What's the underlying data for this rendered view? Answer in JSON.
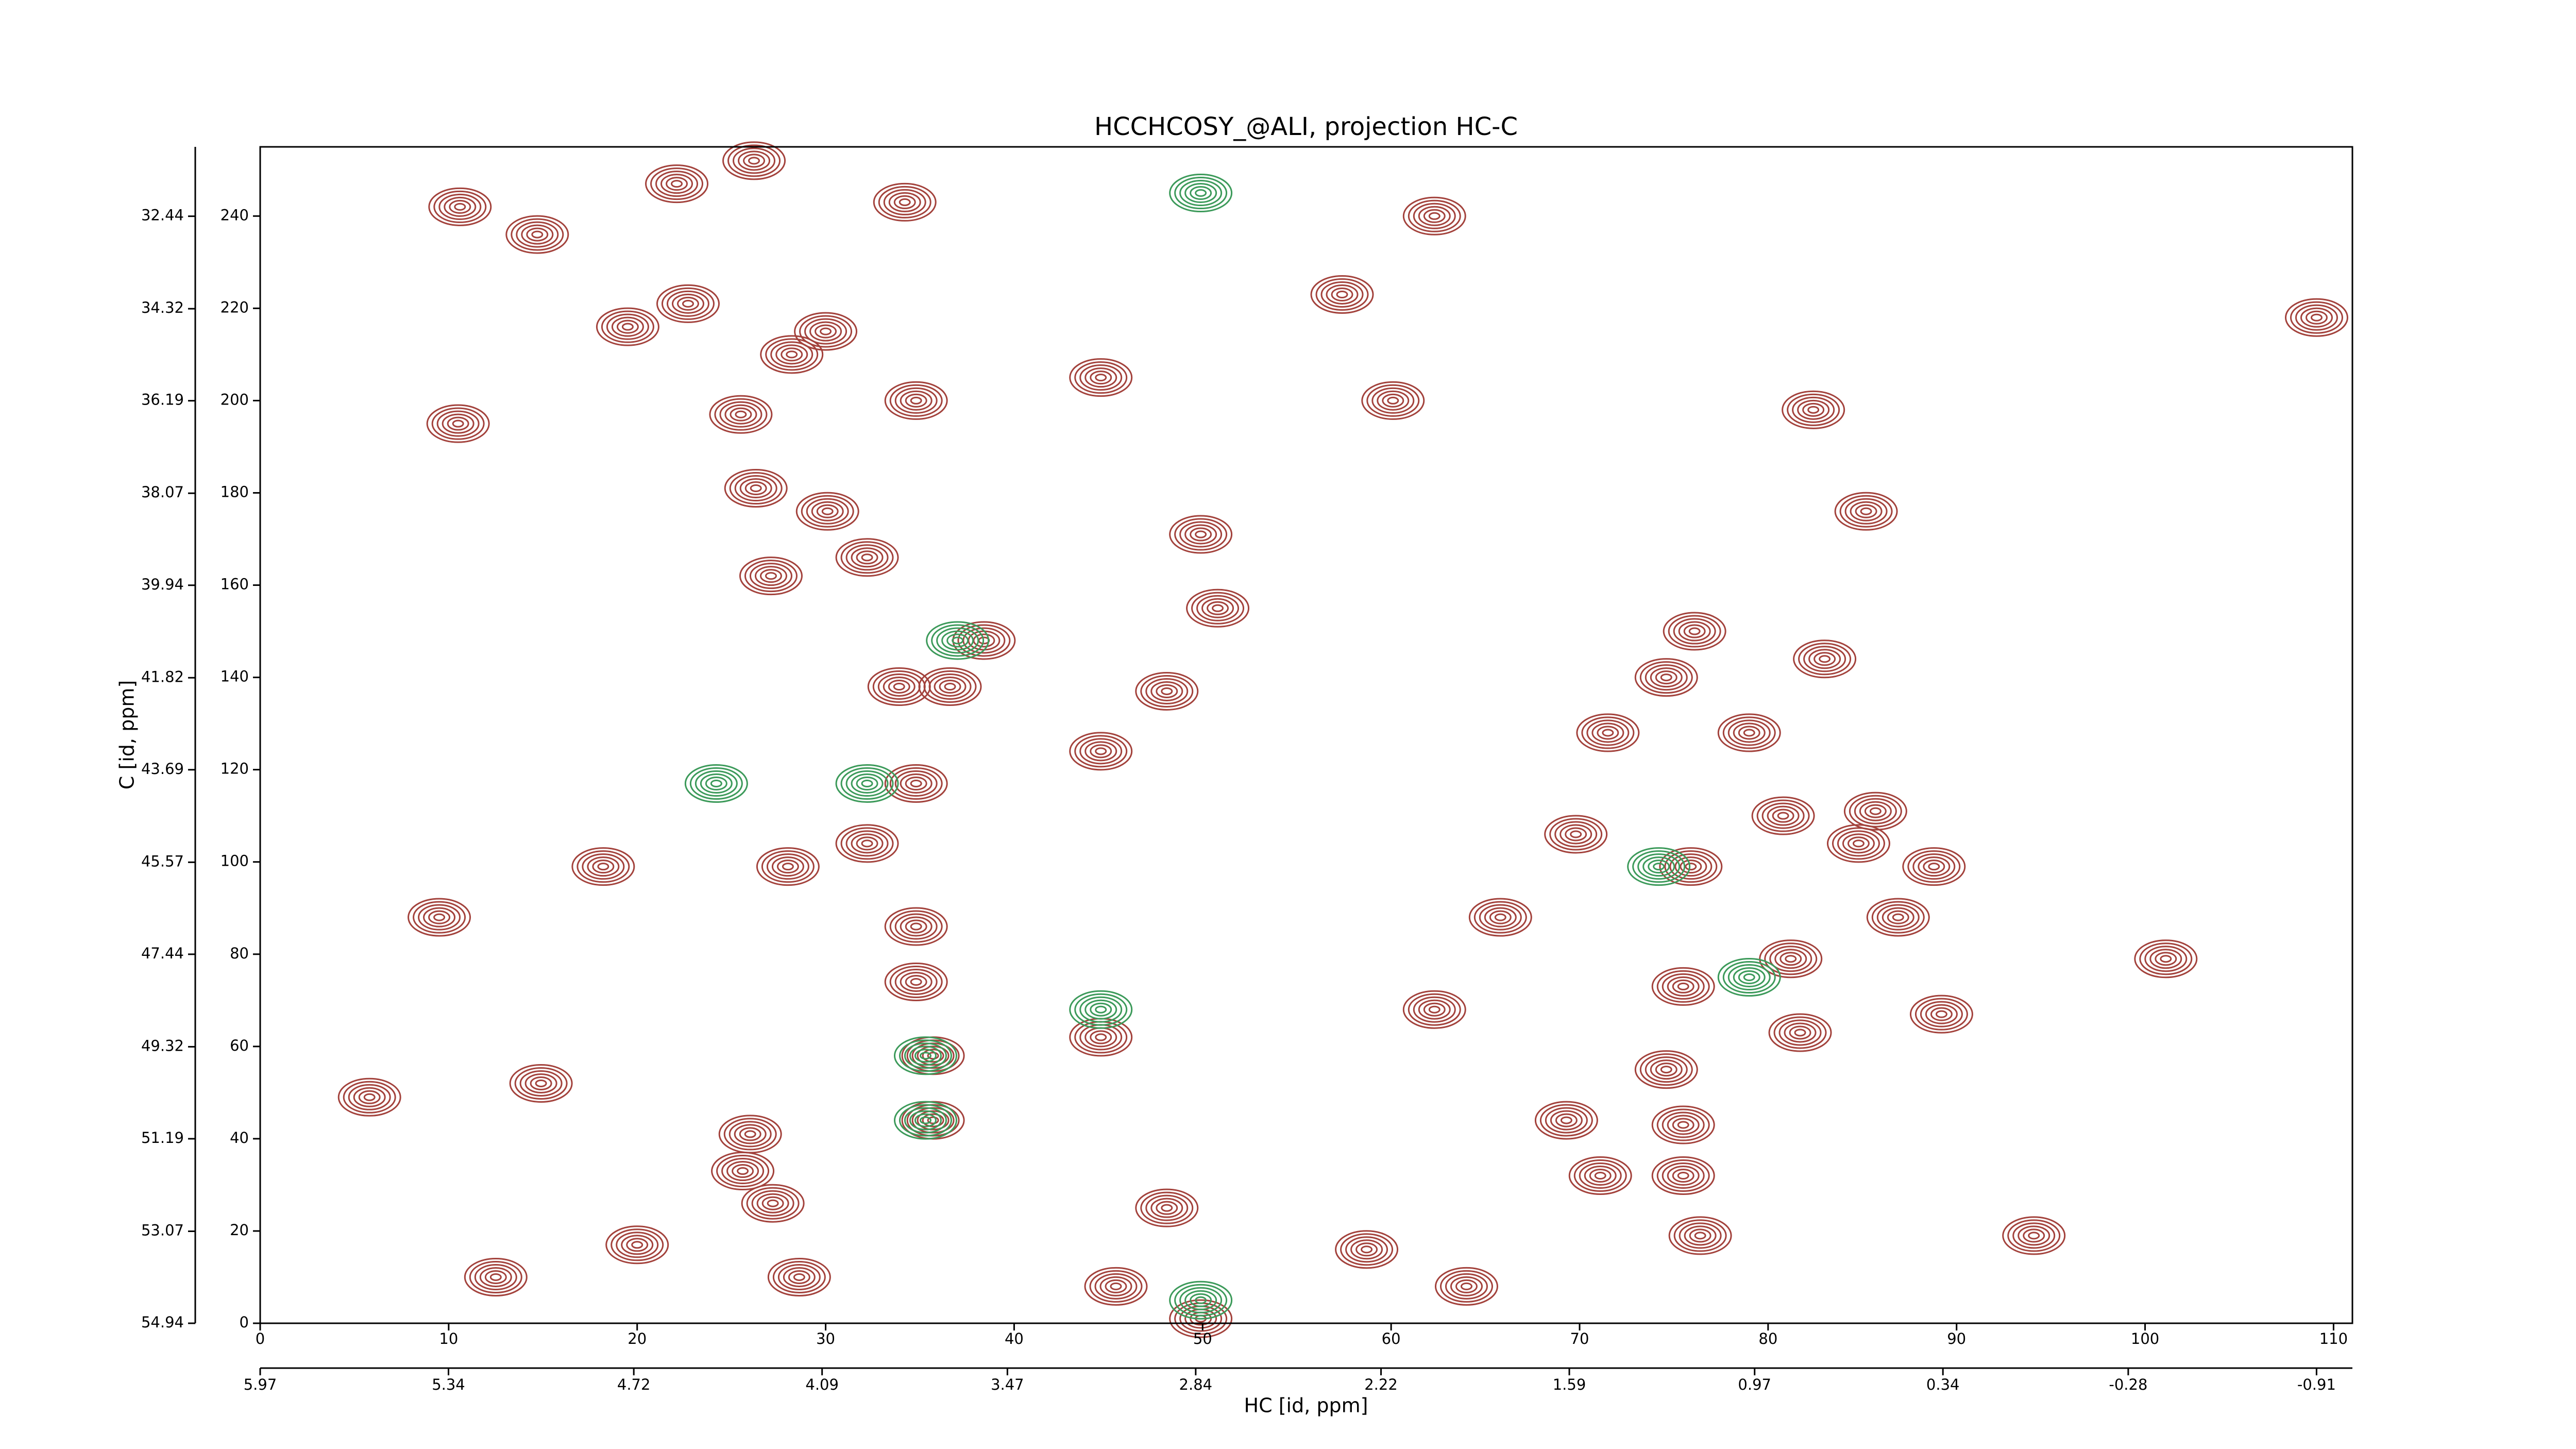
{
  "chart_data": {
    "type": "contour",
    "title": "HCCHCOSY_@ALI, projection HC-C",
    "xlabel": "HC [id, ppm]",
    "ylabel": "C [id, ppm]",
    "xlim": [
      0,
      111
    ],
    "xticks": [
      0,
      10,
      20,
      30,
      40,
      50,
      60,
      70,
      80,
      90,
      100,
      110
    ],
    "x2lim": [
      5.97,
      -1.03
    ],
    "x2ticks": [
      5.97,
      5.34,
      4.72,
      4.09,
      3.47,
      2.84,
      2.22,
      1.59,
      0.97,
      0.34,
      -0.28,
      -0.91
    ],
    "ylim": [
      0,
      255
    ],
    "yticks": [
      0,
      20,
      40,
      60,
      80,
      100,
      120,
      140,
      160,
      180,
      200,
      220,
      240
    ],
    "y2lim": [
      54.94,
      31.03
    ],
    "y2ticks": [
      54.94,
      53.07,
      51.19,
      49.32,
      47.44,
      45.57,
      43.69,
      41.82,
      39.94,
      38.07,
      36.19,
      34.32,
      32.44
    ],
    "series": [
      {
        "color": "#a3423c",
        "x": [
          22.7,
          22.1,
          10.6,
          14.7,
          26.2,
          30,
          28.2,
          34.2,
          19.5,
          25.5,
          34.8,
          10.5,
          26.3,
          30.1,
          32.2,
          27.1,
          38.4,
          36.6,
          33.9,
          44.6,
          48.1,
          34.8,
          28,
          32.2,
          34.8,
          18.2,
          9.5,
          5.8,
          14.9,
          34.8,
          44.6,
          35.7,
          35.7,
          26,
          25.6,
          20,
          27.2,
          28.6,
          12.5,
          48.1,
          45.4,
          49.9,
          57.4,
          62.3,
          60.1,
          49.9,
          50.8,
          44.6,
          82.4,
          85.2,
          76.1,
          71.5,
          74.6,
          83,
          79,
          80.8,
          85.7,
          84.8,
          69.8,
          75.9,
          88.8,
          65.8,
          81.2,
          86.9,
          62.3,
          75.5,
          89.2,
          81.7,
          74.6,
          69.3,
          75.5,
          71.1,
          75.5,
          64,
          58.7,
          76.4,
          94.1,
          109.1,
          101.1
        ],
        "y": [
          221,
          247,
          242,
          236,
          252,
          215,
          210,
          243,
          216,
          197,
          200,
          195,
          181,
          176,
          166,
          162,
          148,
          138,
          138,
          124,
          137,
          117,
          99,
          104,
          86,
          99,
          88,
          49,
          52,
          74,
          62,
          58,
          44,
          41,
          33,
          17,
          26,
          10,
          10,
          25,
          8,
          1,
          223,
          240,
          200,
          171,
          155,
          205,
          198,
          176,
          150,
          128,
          140,
          144,
          128,
          110,
          111,
          104,
          106,
          99,
          99,
          88,
          79,
          88,
          68,
          73,
          67,
          63,
          55,
          44,
          43,
          32,
          32,
          8,
          16,
          19,
          19,
          218,
          79
        ]
      },
      {
        "color": "#3c9a5a",
        "x": [
          32.2,
          24.2,
          37,
          35.3,
          35.3,
          44.6,
          49.9,
          49.9,
          74.2,
          79
        ],
        "y": [
          117,
          117,
          148,
          58,
          44,
          68,
          245,
          5,
          99,
          75
        ]
      }
    ]
  }
}
